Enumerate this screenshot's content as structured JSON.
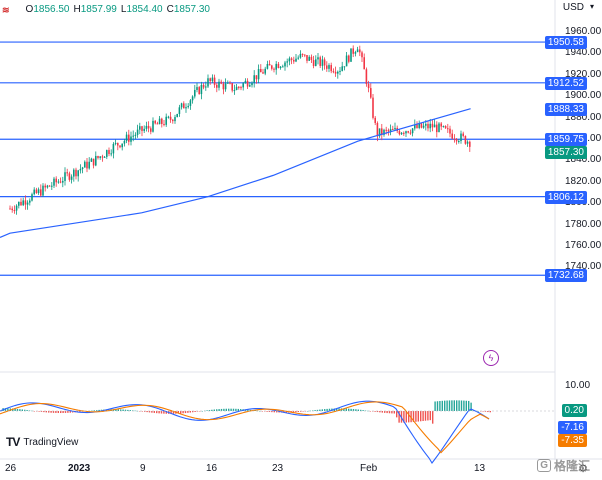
{
  "header": {
    "symbol_icon": "≋",
    "open_label": "O",
    "open": "1856.50",
    "high_label": "H",
    "high": "1857.99",
    "low_label": "L",
    "low": "1854.40",
    "close_label": "C",
    "close": "1857.30",
    "currency": "USD",
    "currency_menu_icon": "chevron-down-icon"
  },
  "y_axis": {
    "labels": [
      "1960.00",
      "1940.00",
      "1920.00",
      "1900.00",
      "1880.00",
      "1860.00",
      "1840.00",
      "1820.00",
      "1800.00",
      "1780.00",
      "1760.00",
      "1740.00"
    ],
    "price_tags": [
      {
        "label": "1950.58",
        "color": "#2962ff"
      },
      {
        "label": "1912.52",
        "color": "#2962ff"
      },
      {
        "label": "1888.33",
        "color": "#2962ff"
      },
      {
        "label": "1859.75",
        "color": "#2962ff"
      },
      {
        "label": "1857.30",
        "color": "#089981"
      },
      {
        "label": "1806.12",
        "color": "#2962ff"
      },
      {
        "label": "1732.68",
        "color": "#2962ff"
      }
    ]
  },
  "macd_axis": {
    "label": "10.00",
    "tags": [
      {
        "label": "0.20",
        "color": "#089981"
      },
      {
        "label": "-7.16",
        "color": "#2962ff"
      },
      {
        "label": "-7.35",
        "color": "#f57c00"
      }
    ]
  },
  "x_axis": {
    "labels": [
      {
        "text": "26",
        "bold": false
      },
      {
        "text": "2023",
        "bold": true
      },
      {
        "text": "9",
        "bold": false
      },
      {
        "text": "16",
        "bold": false
      },
      {
        "text": "23",
        "bold": false
      },
      {
        "text": "Feb",
        "bold": false
      },
      {
        "text": "13",
        "bold": false
      }
    ]
  },
  "branding": {
    "logo_mark": "TV",
    "logo_text": "TradingView",
    "alert_icon": "lightning-icon",
    "settings_icon": "gear-icon",
    "watermark": "格隆汇",
    "watermark_badge": "G"
  },
  "colors": {
    "up": "#089981",
    "down": "#f23645",
    "ma": "#2962ff",
    "level": "#2962ff",
    "macd": "#2962ff",
    "signal": "#f57c00"
  },
  "chart_data": {
    "type": "candlestick",
    "levels": [
      1950.58,
      1912.52,
      1859.75,
      1806.12,
      1732.68
    ],
    "ma_series": [
      {
        "x": "2022-12-26",
        "y": 1772
      },
      {
        "x": "2023-01-09",
        "y": 1791
      },
      {
        "x": "2023-01-16",
        "y": 1806
      },
      {
        "x": "2023-01-23",
        "y": 1826
      },
      {
        "x": "2023-02-01",
        "y": 1858
      },
      {
        "x": "2023-02-13",
        "y": 1888.33
      }
    ],
    "close_series": [
      {
        "x": "2022-12-26",
        "y": 1795
      },
      {
        "x": "2022-12-30",
        "y": 1815
      },
      {
        "x": "2023-01-04",
        "y": 1840
      },
      {
        "x": "2023-01-06",
        "y": 1853
      },
      {
        "x": "2023-01-09",
        "y": 1868
      },
      {
        "x": "2023-01-12",
        "y": 1878
      },
      {
        "x": "2023-01-16",
        "y": 1914
      },
      {
        "x": "2023-01-19",
        "y": 1907
      },
      {
        "x": "2023-01-23",
        "y": 1929
      },
      {
        "x": "2023-01-26",
        "y": 1937
      },
      {
        "x": "2023-01-30",
        "y": 1925
      },
      {
        "x": "2023-02-01",
        "y": 1948
      },
      {
        "x": "2023-02-02",
        "y": 1912
      },
      {
        "x": "2023-02-03",
        "y": 1865
      },
      {
        "x": "2023-02-07",
        "y": 1870
      },
      {
        "x": "2023-02-09",
        "y": 1872
      },
      {
        "x": "2023-02-13",
        "y": 1857.3
      }
    ],
    "macd_value": -7.16,
    "signal_value": -7.35,
    "histogram_value": 0.2
  }
}
